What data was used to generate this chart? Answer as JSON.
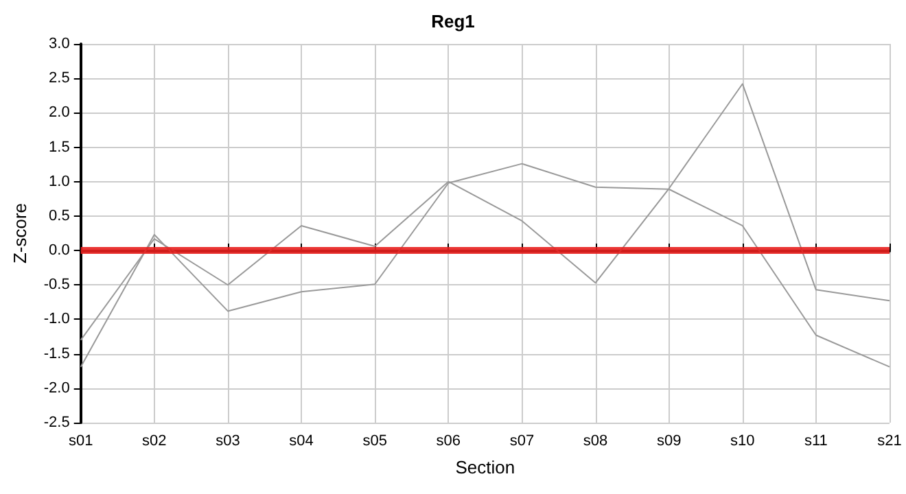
{
  "chart_data": {
    "type": "line",
    "title": "Reg1",
    "xlabel": "Section",
    "ylabel": "Z-score",
    "categories": [
      "s01",
      "s02",
      "s03",
      "s04",
      "s05",
      "s06",
      "s07",
      "s08",
      "s09",
      "s10",
      "s11",
      "s21"
    ],
    "series": [
      {
        "color": "#999999",
        "values": [
          -1.3,
          0.17,
          -0.5,
          0.36,
          0.06,
          1.0,
          0.43,
          -0.47,
          0.9,
          2.42,
          -0.57,
          -0.73
        ]
      },
      {
        "color": "#999999",
        "values": [
          -1.69,
          0.23,
          -0.88,
          -0.6,
          -0.49,
          0.98,
          1.26,
          0.92,
          0.89,
          0.36,
          -1.23,
          -1.69
        ]
      }
    ],
    "ylim": [
      -2.5,
      3.0
    ],
    "yticks": [
      {
        "value": -2.5,
        "label": "-2.5"
      },
      {
        "value": -2,
        "label": "-2.0"
      },
      {
        "value": -1.5,
        "label": "-1.5"
      },
      {
        "value": -1,
        "label": "-1.0"
      },
      {
        "value": -0.5,
        "label": "-0.5"
      },
      {
        "value": 0,
        "label": "0.0"
      },
      {
        "value": 0.5,
        "label": "0.5"
      },
      {
        "value": 1,
        "label": "1.0"
      },
      {
        "value": 1.5,
        "label": "1.5"
      },
      {
        "value": 2,
        "label": "2.0"
      },
      {
        "value": 2.5,
        "label": "2.5"
      },
      {
        "value": 3,
        "label": "3.0"
      }
    ],
    "ref_lines": [
      {
        "axis": "y",
        "value": 0,
        "color": "#e8201e"
      }
    ],
    "grid": true,
    "marker": "none",
    "line_style": "solid"
  }
}
